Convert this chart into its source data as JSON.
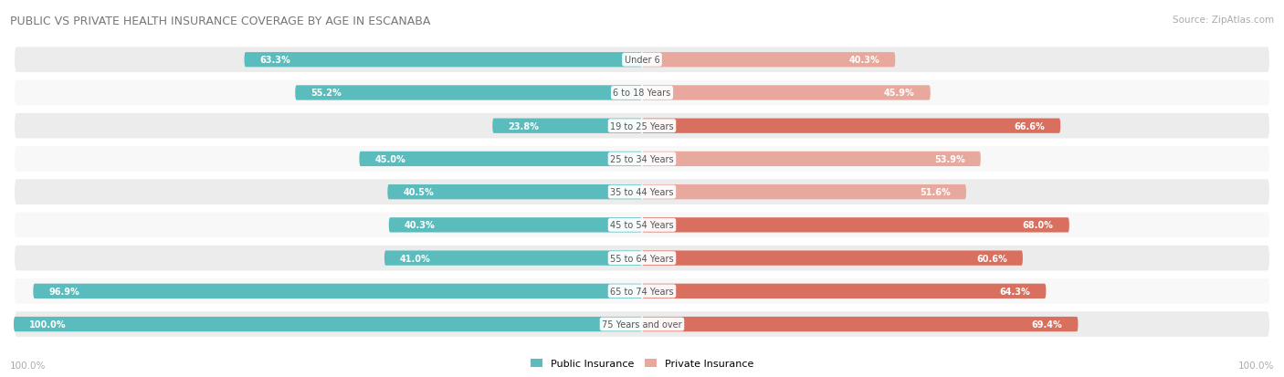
{
  "title": "PUBLIC VS PRIVATE HEALTH INSURANCE COVERAGE BY AGE IN ESCANABA",
  "source": "Source: ZipAtlas.com",
  "categories": [
    "Under 6",
    "6 to 18 Years",
    "19 to 25 Years",
    "25 to 34 Years",
    "35 to 44 Years",
    "45 to 54 Years",
    "55 to 64 Years",
    "65 to 74 Years",
    "75 Years and over"
  ],
  "public_values": [
    63.3,
    55.2,
    23.8,
    45.0,
    40.5,
    40.3,
    41.0,
    96.9,
    100.0
  ],
  "private_values": [
    40.3,
    45.9,
    66.6,
    53.9,
    51.6,
    68.0,
    60.6,
    64.3,
    69.4
  ],
  "public_color": "#5bbcbd",
  "private_color_strong": "#d96f5e",
  "private_color_light": "#e8a89e",
  "private_thresholds": [
    50.0,
    50.0,
    50.0,
    50.0,
    50.0,
    50.0,
    50.0,
    50.0,
    50.0
  ],
  "row_bg_color_odd": "#ececec",
  "row_bg_color_even": "#f8f8f8",
  "title_color": "#777777",
  "value_color_inside": "#ffffff",
  "value_color_outside": "#999999",
  "max_value": 100.0,
  "figsize": [
    14.06,
    4.14
  ],
  "dpi": 100,
  "fig_bg": "#ffffff",
  "inside_threshold": 20.0,
  "private_strong_threshold": 55.0
}
